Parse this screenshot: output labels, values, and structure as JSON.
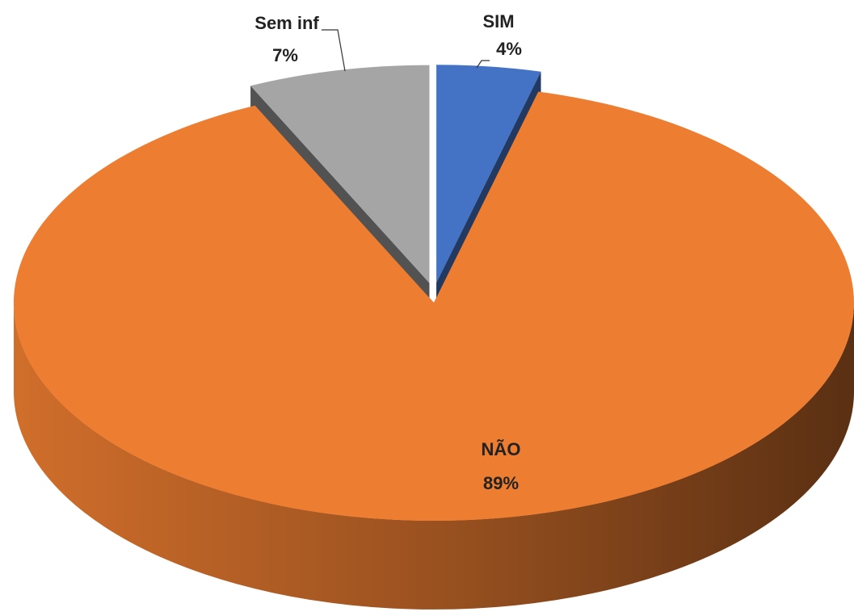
{
  "chart_data": {
    "type": "pie",
    "categories": [
      "SIM",
      "NÃO",
      "Sem inf"
    ],
    "values": [
      4,
      89,
      7
    ],
    "value_labels": [
      "4%",
      "89%",
      "7%"
    ],
    "colors": [
      "#4472c4",
      "#ed7d31",
      "#a5a5a5"
    ]
  }
}
